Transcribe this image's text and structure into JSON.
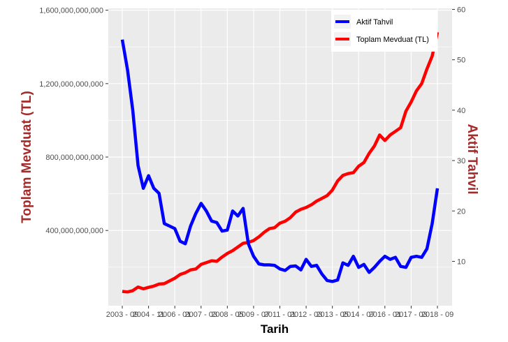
{
  "chart_data": {
    "type": "line",
    "xlabel": "Tarih",
    "ylabel_left": "Toplam Mevduat (TL)",
    "ylabel_right": "Aktif Tahvil",
    "x_tick_labels": [
      "2003 - 09",
      "2004 - 11",
      "2006 - 01",
      "2007 - 03",
      "2008 - 05",
      "2009 - 07",
      "2011 - 01",
      "2012 - 03",
      "2013 - 05",
      "2014 - 07",
      "2016 - 01",
      "2017 - 03",
      "2018 - 09"
    ],
    "y_left_ticks": [
      "400,000,000,000",
      "800,000,000,000",
      "1,200,000,000,000",
      "1,600,000,000,000"
    ],
    "y_left_tick_values": [
      400000000000,
      800000000000,
      1200000000000,
      1600000000000
    ],
    "y_right_ticks": [
      "10",
      "20",
      "30",
      "40",
      "50",
      "60"
    ],
    "y_right_tick_values": [
      10,
      20,
      30,
      40,
      50,
      60
    ],
    "ylim_left": [
      -10000000000,
      1610000000000
    ],
    "ylim_right": [
      1.2,
      60.2
    ],
    "xlim": [
      0,
      60
    ],
    "grid": true,
    "legend_position": "top-right",
    "colors": {
      "panel": "#ebebeb",
      "grid": "#ffffff",
      "axis_title": "#a52a2a",
      "tahvil": "#0000ff",
      "mevduat": "#ff0000"
    },
    "series": [
      {
        "name": "Aktif Tahvil",
        "axis": "right",
        "color": "#0000ff",
        "x": [
          0,
          1,
          2,
          3,
          4,
          5,
          6,
          7,
          8,
          9,
          10,
          11,
          12,
          13,
          14,
          15,
          16,
          17,
          18,
          19,
          20,
          21,
          22,
          23,
          24,
          25,
          26,
          27,
          28,
          29,
          30,
          31,
          32,
          33,
          34,
          35,
          36,
          37,
          38,
          39,
          40,
          41,
          42,
          43,
          44,
          45,
          46,
          47,
          48,
          49,
          50,
          51,
          52,
          53,
          54,
          55,
          56,
          57,
          58,
          59,
          60
        ],
        "values": [
          54,
          48,
          40,
          29,
          24.5,
          27,
          24.5,
          23.5,
          17.5,
          17,
          16.5,
          14,
          13.5,
          17,
          19.5,
          21.5,
          20,
          18,
          17.7,
          16,
          16.2,
          20,
          19,
          20.5,
          13.5,
          11,
          9.5,
          9.3,
          9.3,
          9.2,
          8.5,
          8.2,
          9,
          9.1,
          8.3,
          10.4,
          9,
          9.2,
          7.5,
          6.2,
          6,
          6.3,
          9.7,
          9.2,
          11,
          8.8,
          9.4,
          7.8,
          8.8,
          10,
          11,
          10.4,
          10.8,
          9,
          8.8,
          10.8,
          11,
          10.8,
          12.5,
          17.5,
          24.5
        ]
      },
      {
        "name": "Toplam Mevduat (TL)",
        "axis": "left",
        "color": "#ff0000",
        "x": [
          0,
          1,
          2,
          3,
          4,
          5,
          6,
          7,
          8,
          9,
          10,
          11,
          12,
          13,
          14,
          15,
          16,
          17,
          18,
          19,
          20,
          21,
          22,
          23,
          24,
          25,
          26,
          27,
          28,
          29,
          30,
          31,
          32,
          33,
          34,
          35,
          36,
          37,
          38,
          39,
          40,
          41,
          42,
          43,
          44,
          45,
          46,
          47,
          48,
          49,
          50,
          51,
          52,
          53,
          54,
          55,
          56,
          57,
          58,
          59,
          60
        ],
        "values": [
          68000000000,
          65000000000,
          72000000000,
          92000000000,
          82000000000,
          90000000000,
          97000000000,
          108000000000,
          110000000000,
          125000000000,
          140000000000,
          160000000000,
          170000000000,
          185000000000,
          190000000000,
          215000000000,
          225000000000,
          235000000000,
          232000000000,
          255000000000,
          275000000000,
          290000000000,
          310000000000,
          330000000000,
          335000000000,
          345000000000,
          365000000000,
          390000000000,
          410000000000,
          415000000000,
          440000000000,
          450000000000,
          470000000000,
          500000000000,
          515000000000,
          525000000000,
          540000000000,
          560000000000,
          575000000000,
          590000000000,
          620000000000,
          670000000000,
          700000000000,
          710000000000,
          715000000000,
          750000000000,
          770000000000,
          820000000000,
          860000000000,
          920000000000,
          890000000000,
          920000000000,
          940000000000,
          960000000000,
          1050000000000,
          1100000000000,
          1160000000000,
          1200000000000,
          1280000000000,
          1350000000000,
          1480000000000
        ]
      }
    ]
  }
}
